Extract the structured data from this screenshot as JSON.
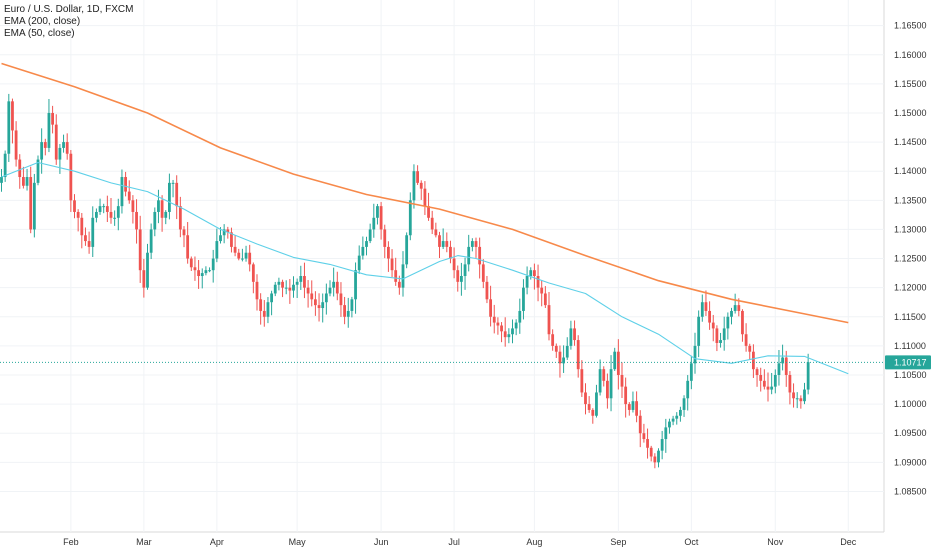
{
  "legend": {
    "title": "Euro / U.S. Dollar, 1D, FXCM",
    "ema200": "EMA (200, close)",
    "ema50": "EMA (50, close)"
  },
  "colors": {
    "up": "#26a69a",
    "down": "#ef5350",
    "ema200": "#f7894a",
    "ema50": "#5ed0e8",
    "price_line": "#26a69a"
  },
  "chart_data": {
    "type": "candlestick",
    "title": "Euro / U.S. Dollar, 1D, FXCM",
    "xlabel": "",
    "ylabel": "",
    "ylim": [
      1.0825,
      1.167
    ],
    "y_ticks": [
      "1.16500",
      "1.16000",
      "1.15500",
      "1.15000",
      "1.14500",
      "1.14000",
      "1.13500",
      "1.13000",
      "1.12500",
      "1.12000",
      "1.11500",
      "1.11000",
      "1.10500",
      "1.10000",
      "1.09500",
      "1.09000",
      "1.08500"
    ],
    "x_ticks": [
      {
        "label": "Feb",
        "index": 19
      },
      {
        "label": "Mar",
        "index": 39
      },
      {
        "label": "Apr",
        "index": 59
      },
      {
        "label": "May",
        "index": 81
      },
      {
        "label": "Jun",
        "index": 104
      },
      {
        "label": "Jul",
        "index": 124
      },
      {
        "label": "Aug",
        "index": 146
      },
      {
        "label": "Sep",
        "index": 169
      },
      {
        "label": "Oct",
        "index": 189
      },
      {
        "label": "Nov",
        "index": 212
      },
      {
        "label": "Dec",
        "index": 232
      }
    ],
    "last_price": "1.10717",
    "close": [
      1.139,
      1.143,
      1.152,
      1.147,
      1.142,
      1.139,
      1.1375,
      1.139,
      1.13,
      1.138,
      1.142,
      1.145,
      1.144,
      1.15,
      1.148,
      1.142,
      1.144,
      1.145,
      1.143,
      1.135,
      1.133,
      1.132,
      1.129,
      1.128,
      1.127,
      1.132,
      1.133,
      1.134,
      1.134,
      1.133,
      1.132,
      1.132,
      1.134,
      1.139,
      1.1365,
      1.135,
      1.133,
      1.13,
      1.123,
      1.12,
      1.126,
      1.13,
      1.133,
      1.135,
      1.132,
      1.133,
      1.138,
      1.138,
      1.134,
      1.13,
      1.129,
      1.125,
      1.1235,
      1.123,
      1.122,
      1.1225,
      1.123,
      1.123,
      1.125,
      1.128,
      1.129,
      1.13,
      1.1295,
      1.127,
      1.126,
      1.125,
      1.125,
      1.126,
      1.124,
      1.121,
      1.118,
      1.116,
      1.115,
      1.1175,
      1.119,
      1.1205,
      1.121,
      1.12,
      1.12,
      1.1195,
      1.1205,
      1.121,
      1.122,
      1.12,
      1.119,
      1.118,
      1.117,
      1.1165,
      1.1175,
      1.119,
      1.12,
      1.121,
      1.119,
      1.117,
      1.115,
      1.116,
      1.118,
      1.123,
      1.1255,
      1.127,
      1.128,
      1.13,
      1.132,
      1.134,
      1.13,
      1.127,
      1.125,
      1.123,
      1.121,
      1.12,
      1.124,
      1.129,
      1.135,
      1.14,
      1.138,
      1.137,
      1.134,
      1.132,
      1.13,
      1.129,
      1.127,
      1.128,
      1.127,
      1.125,
      1.123,
      1.121,
      1.122,
      1.124,
      1.127,
      1.128,
      1.127,
      1.124,
      1.121,
      1.118,
      1.115,
      1.114,
      1.1135,
      1.1125,
      1.1115,
      1.112,
      1.113,
      1.114,
      1.116,
      1.12,
      1.122,
      1.123,
      1.122,
      1.12,
      1.119,
      1.117,
      1.112,
      1.11,
      1.109,
      1.107,
      1.108,
      1.11,
      1.113,
      1.111,
      1.106,
      1.102,
      1.1,
      1.099,
      1.098,
      1.102,
      1.106,
      1.104,
      1.101,
      1.106,
      1.109,
      1.105,
      1.103,
      1.1,
      1.099,
      1.1005,
      1.098,
      1.095,
      1.094,
      1.0925,
      1.091,
      1.09,
      1.092,
      1.094,
      1.096,
      1.097,
      1.0975,
      1.098,
      1.099,
      1.101,
      1.104,
      1.107,
      1.11,
      1.115,
      1.1175,
      1.116,
      1.114,
      1.113,
      1.1105,
      1.111,
      1.113,
      1.115,
      1.116,
      1.117,
      1.116,
      1.112,
      1.11,
      1.109,
      1.106,
      1.105,
      1.104,
      1.103,
      1.1025,
      1.103,
      1.105,
      1.107,
      1.108,
      1.105,
      1.102,
      1.101,
      1.101,
      1.1005,
      1.1025,
      1.1072
    ],
    "series": [
      {
        "name": "EMA (200, close)",
        "values": [
          [
            0,
            1.1585
          ],
          [
            20,
            1.1545
          ],
          [
            40,
            1.15
          ],
          [
            60,
            1.144
          ],
          [
            80,
            1.1395
          ],
          [
            100,
            1.136
          ],
          [
            120,
            1.1335
          ],
          [
            140,
            1.13
          ],
          [
            160,
            1.1255
          ],
          [
            180,
            1.1212
          ],
          [
            200,
            1.118
          ],
          [
            220,
            1.1155
          ],
          [
            232,
            1.114
          ]
        ]
      },
      {
        "name": "EMA (50, close)",
        "values": [
          [
            0,
            1.139
          ],
          [
            10,
            1.1415
          ],
          [
            20,
            1.14
          ],
          [
            30,
            1.138
          ],
          [
            40,
            1.1365
          ],
          [
            50,
            1.1335
          ],
          [
            60,
            1.13
          ],
          [
            70,
            1.1275
          ],
          [
            80,
            1.1252
          ],
          [
            90,
            1.124
          ],
          [
            100,
            1.1222
          ],
          [
            110,
            1.1215
          ],
          [
            120,
            1.1245
          ],
          [
            125,
            1.1255
          ],
          [
            130,
            1.125
          ],
          [
            140,
            1.123
          ],
          [
            150,
            1.1208
          ],
          [
            160,
            1.119
          ],
          [
            170,
            1.115
          ],
          [
            180,
            1.112
          ],
          [
            190,
            1.1078
          ],
          [
            200,
            1.107
          ],
          [
            210,
            1.1083
          ],
          [
            220,
            1.1082
          ],
          [
            232,
            1.1052
          ]
        ]
      }
    ]
  }
}
